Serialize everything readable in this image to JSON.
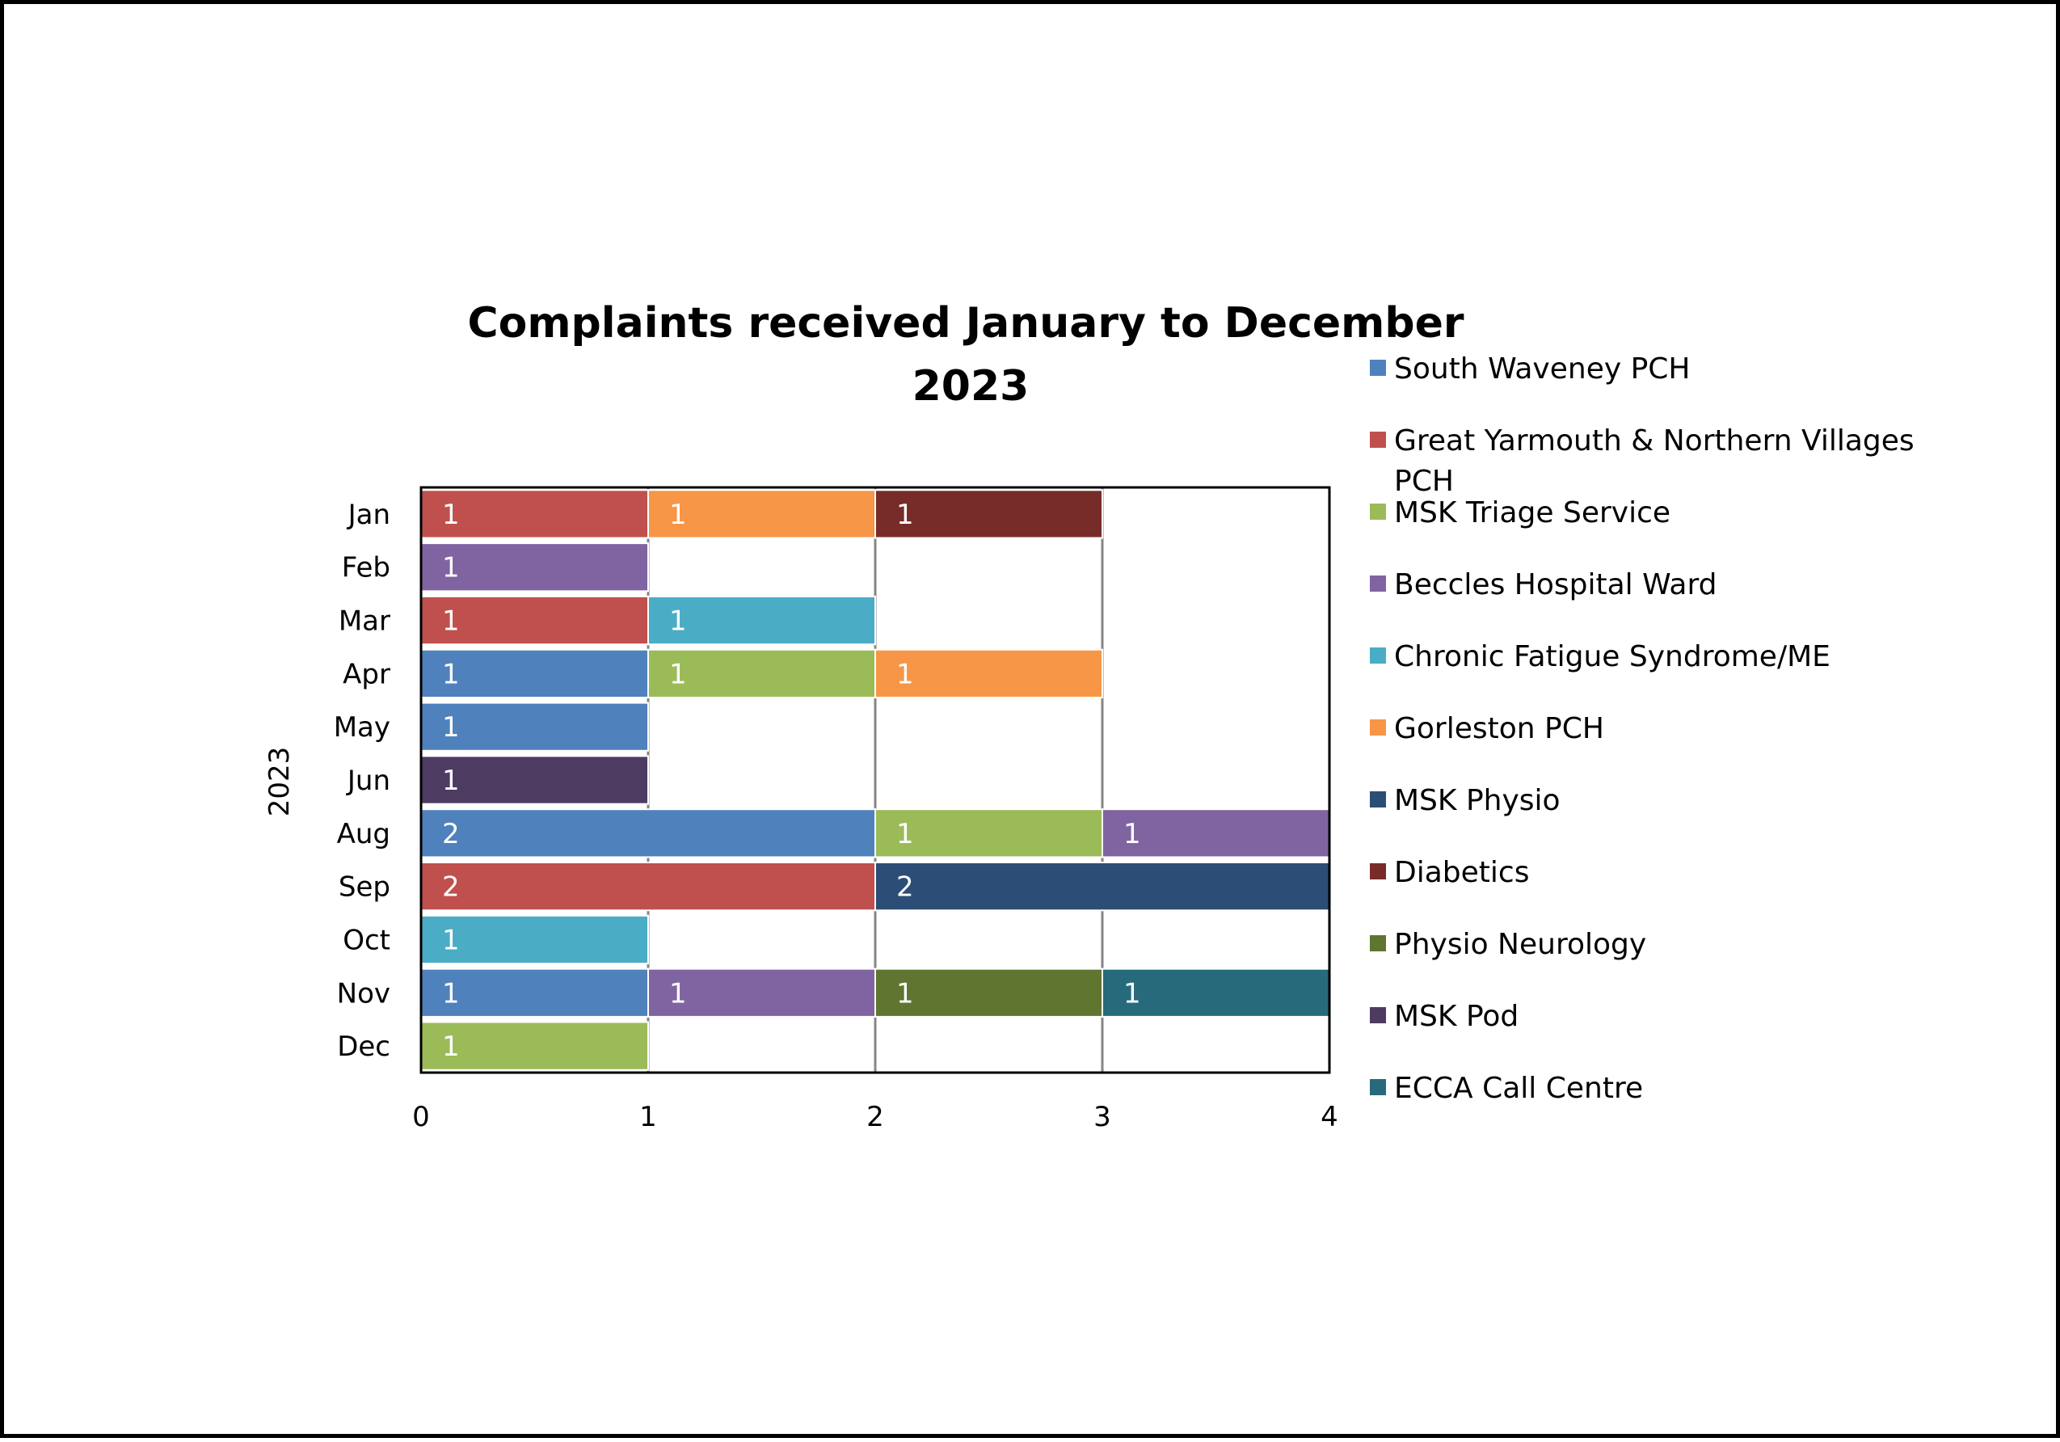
{
  "chart_data": {
    "type": "bar",
    "orientation": "horizontal",
    "stacking": "stacked",
    "title": "Complaints received January to December 2023",
    "title_lines": [
      "Complaints received January to December",
      "2023"
    ],
    "ylabel": "2023",
    "xlabel": "",
    "categories": [
      "Jan",
      "Feb",
      "Mar",
      "Apr",
      "May",
      "Jun",
      "Aug",
      "Sep",
      "Oct",
      "Nov",
      "Dec"
    ],
    "xlim": [
      0,
      4
    ],
    "xticks": [
      0,
      1,
      2,
      3,
      4
    ],
    "grid": "vertical major gridlines",
    "legend_position": "right",
    "series": [
      {
        "name": "South Waveney PCH",
        "color": "#4F81BD",
        "values": [
          0,
          0,
          0,
          1,
          1,
          0,
          2,
          0,
          0,
          1,
          0
        ]
      },
      {
        "name": "Great Yarmouth & Northern Villages PCH",
        "color": "#C0504D",
        "values": [
          1,
          0,
          1,
          0,
          0,
          0,
          0,
          2,
          0,
          0,
          0
        ]
      },
      {
        "name": "MSK Triage Service",
        "color": "#9BBB59",
        "values": [
          0,
          0,
          0,
          1,
          0,
          0,
          1,
          0,
          0,
          0,
          1
        ]
      },
      {
        "name": "Beccles Hospital Ward",
        "color": "#8064A2",
        "values": [
          0,
          1,
          0,
          0,
          0,
          0,
          1,
          0,
          0,
          1,
          0
        ]
      },
      {
        "name": "Chronic Fatigue Syndrome/ME",
        "color": "#4BACC6",
        "values": [
          0,
          0,
          1,
          0,
          0,
          0,
          0,
          0,
          1,
          0,
          0
        ]
      },
      {
        "name": "Gorleston PCH",
        "color": "#F79646",
        "values": [
          1,
          0,
          0,
          1,
          0,
          0,
          0,
          0,
          0,
          0,
          0
        ]
      },
      {
        "name": "MSK Physio",
        "color": "#2C4D75",
        "values": [
          0,
          0,
          0,
          0,
          0,
          0,
          0,
          2,
          0,
          0,
          0
        ]
      },
      {
        "name": "Diabetics",
        "color": "#772C2A",
        "values": [
          1,
          0,
          0,
          0,
          0,
          0,
          0,
          0,
          0,
          0,
          0
        ]
      },
      {
        "name": "Physio Neurology",
        "color": "#5F7530",
        "values": [
          0,
          0,
          0,
          0,
          0,
          0,
          0,
          0,
          0,
          1,
          0
        ]
      },
      {
        "name": "MSK Pod",
        "color": "#4D3B62",
        "values": [
          0,
          0,
          0,
          0,
          0,
          1,
          0,
          0,
          0,
          0,
          0
        ]
      },
      {
        "name": "ECCA Call Centre",
        "color": "#276A7C",
        "values": [
          0,
          0,
          0,
          0,
          0,
          0,
          0,
          0,
          0,
          1,
          0
        ]
      }
    ]
  }
}
